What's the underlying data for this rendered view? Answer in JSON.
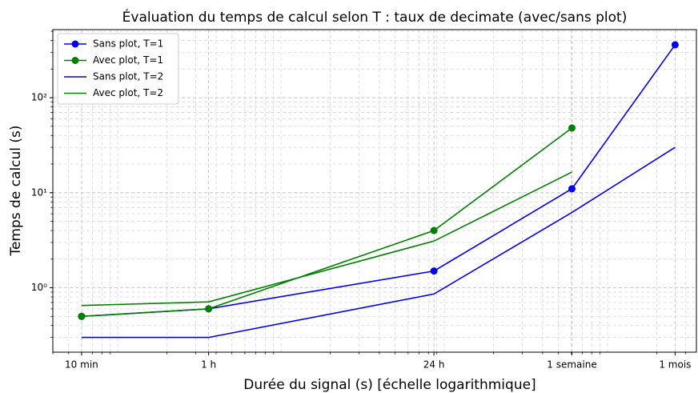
{
  "chart_data": {
    "type": "line",
    "title": "Évaluation du temps de calcul selon T : taux de decimate (avec/sans plot)",
    "x_label": "Durée du signal (s) [échelle logarithmique]",
    "y_label": "Temps de calcul (s)",
    "x": [
      600,
      3600,
      86400,
      604800,
      2592000
    ],
    "series": [
      {
        "name": "Sans plot, T=1",
        "color": "#0000ee",
        "marker": true,
        "values": [
          0.5,
          0.6,
          1.5,
          11,
          360
        ]
      },
      {
        "name": "Avec plot, T=1",
        "color": "#008000",
        "marker": true,
        "values": [
          0.5,
          0.6,
          4.0,
          48,
          null
        ]
      },
      {
        "name": "Sans plot, T=2",
        "color": "#0000ee",
        "marker": false,
        "values": [
          0.3,
          0.3,
          0.86,
          6.2,
          30
        ]
      },
      {
        "name": "Avec plot, T=2",
        "color": "#008000",
        "marker": false,
        "values": [
          0.65,
          0.71,
          3.1,
          16.5,
          null
        ]
      }
    ],
    "xlog": true,
    "ylog": true,
    "xlim": [
      400,
      3500000
    ],
    "ylim": [
      0.21,
      520
    ],
    "xticks": [
      {
        "value": 600,
        "label": "10 min"
      },
      {
        "value": 3600,
        "label": "1 h"
      },
      {
        "value": 86400,
        "label": "24 h"
      },
      {
        "value": 604800,
        "label": "1 semaine"
      },
      {
        "value": 2592000,
        "label": "1 mois"
      }
    ],
    "yticks": [
      {
        "value": 1,
        "label": "10⁰"
      },
      {
        "value": 10,
        "label": "10¹"
      },
      {
        "value": 100,
        "label": "10²"
      }
    ],
    "grid": true,
    "minor_grid": true,
    "legend": "upper left"
  }
}
